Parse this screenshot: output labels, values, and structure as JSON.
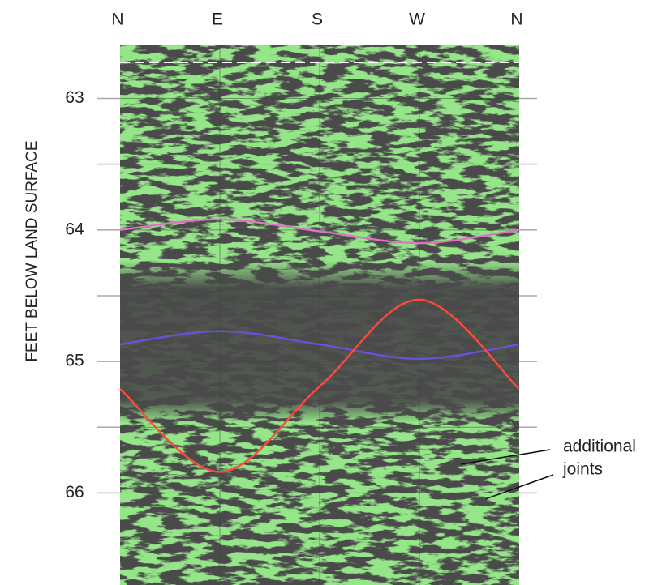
{
  "chart_data": {
    "type": "sinusoid-log",
    "ylabel": "FEET BELOW LAND SURFACE",
    "categories": [
      "N",
      "E",
      "S",
      "W",
      "N"
    ],
    "ylim": [
      62.59,
      66.7
    ],
    "yticks": [
      63,
      64,
      65,
      66
    ],
    "minor_yticks": [
      63.5,
      64.5,
      65.5
    ],
    "grid": true,
    "series": [
      {
        "color": "#e070c8",
        "values": [
          64.0,
          63.92,
          64.01,
          64.1,
          64.0
        ]
      },
      {
        "color": "#6a50d8",
        "values": [
          64.87,
          64.77,
          64.87,
          64.98,
          64.87
        ]
      },
      {
        "color": "#ff4a3a",
        "values": [
          65.21,
          65.84,
          65.19,
          64.53,
          65.21
        ]
      }
    ],
    "annotations": [
      "additional",
      "joints"
    ]
  }
}
